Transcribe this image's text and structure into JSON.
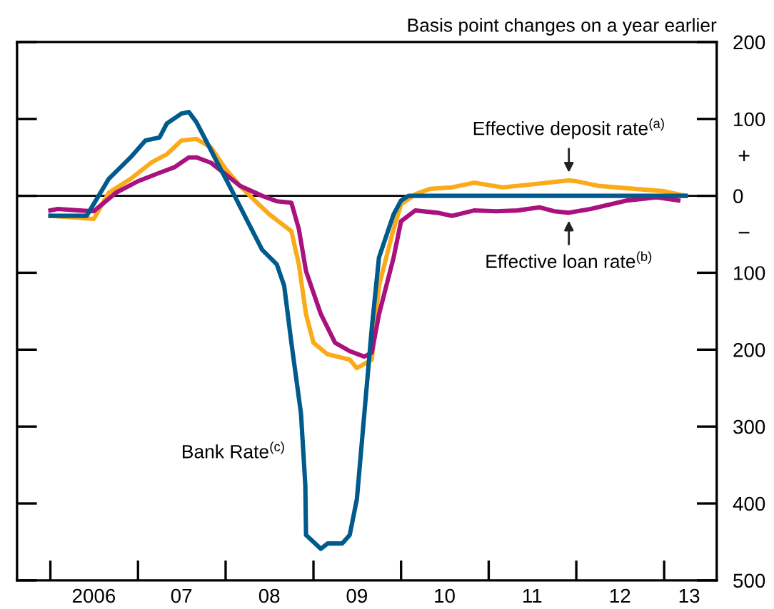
{
  "chart_data": {
    "type": "line",
    "ylabel": "Basis point changes on a year earlier",
    "xlim": [
      "2005-08-15",
      "2013-08-08"
    ],
    "ylim": [
      -500,
      200
    ],
    "xticks": [
      {
        "value": "2006-01-01",
        "label": null
      },
      {
        "value": "2007-01-01",
        "label": null
      },
      {
        "value": "2008-01-01",
        "label": null
      },
      {
        "value": "2009-01-01",
        "label": null
      },
      {
        "value": "2010-01-01",
        "label": null
      },
      {
        "value": "2011-01-01",
        "label": null
      },
      {
        "value": "2012-01-01",
        "label": null
      },
      {
        "value": "2013-01-01",
        "label": null
      },
      {
        "value": "2006-07-01",
        "label": "2006"
      },
      {
        "value": "2007-07-01",
        "label": "07"
      },
      {
        "value": "2008-07-01",
        "label": "08"
      },
      {
        "value": "2009-07-01",
        "label": "09"
      },
      {
        "value": "2010-07-01",
        "label": "10"
      },
      {
        "value": "2011-07-01",
        "label": "11"
      },
      {
        "value": "2012-07-01",
        "label": "12"
      },
      {
        "value": "2013-04-15",
        "label": "13"
      }
    ],
    "yticks": [
      200,
      100,
      0,
      {
        "value": -100,
        "label": "100"
      },
      {
        "value": -200,
        "label": "200"
      },
      {
        "value": -300,
        "label": "300"
      },
      {
        "value": -400,
        "label": "400"
      },
      {
        "value": -500,
        "label": "500"
      }
    ],
    "grid": false,
    "legend": false,
    "line_style": "solid",
    "marker": "none",
    "ref_lines": [
      {
        "axis": "y",
        "value": 0,
        "label": null,
        "color": "#000000"
      }
    ],
    "series": [
      {
        "color": "#fbaa19",
        "x": [
          "2006-01",
          "2006-07",
          "2006-09",
          "2006-12",
          "2007-03",
          "2007-05",
          "2007-07",
          "2007-09",
          "2007-11",
          "2008-01",
          "2008-03",
          "2008-05",
          "2008-07",
          "2008-10",
          "2008-11",
          "2008-12",
          "2009-01",
          "2009-03",
          "2009-06",
          "2009-07",
          "2009-09",
          "2009-10",
          "2009-12",
          "2010-01",
          "2010-03",
          "2010-05",
          "2010-08",
          "2010-11",
          "2011-03",
          "2011-07",
          "2011-12",
          "2012-01",
          "2012-04",
          "2012-09",
          "2013-01",
          "2013-04"
        ],
        "values": [
          -26,
          -30,
          4,
          22,
          44,
          54,
          72,
          74,
          63,
          35,
          13,
          -6,
          -24,
          -46,
          -89,
          -154,
          -191,
          -206,
          -213,
          -224,
          -213,
          -117,
          -43,
          -11,
          2,
          9,
          11,
          17,
          11,
          15,
          20,
          19,
          13,
          9,
          6,
          0
        ]
      },
      {
        "color": "#a8117e",
        "x": [
          "2006-01",
          "2006-02",
          "2006-05",
          "2006-07",
          "2006-10",
          "2007-01",
          "2007-04",
          "2007-06",
          "2007-08",
          "2007-09",
          "2007-11",
          "2008-01",
          "2008-03",
          "2008-06",
          "2008-08",
          "2008-10",
          "2008-11",
          "2008-12",
          "2009-02",
          "2009-04",
          "2009-06",
          "2009-08",
          "2009-09",
          "2009-10",
          "2009-12",
          "2010-01",
          "2010-03",
          "2010-06",
          "2010-08",
          "2010-11",
          "2011-02",
          "2011-05",
          "2011-08",
          "2011-10",
          "2011-12",
          "2012-03",
          "2012-08",
          "2012-12",
          "2013-03"
        ],
        "values": [
          -19,
          -17,
          -19,
          -20,
          4,
          19,
          30,
          37,
          50,
          50,
          43,
          28,
          13,
          0,
          -7,
          -9,
          -43,
          -98,
          -154,
          -191,
          -202,
          -209,
          -204,
          -154,
          -80,
          -33,
          -19,
          -22,
          -26,
          -19,
          -20,
          -19,
          -15,
          -20,
          -22,
          -17,
          -6,
          -2,
          -6
        ]
      },
      {
        "color": "#005a8c",
        "x": [
          "2006-01",
          "2006-06",
          "2006-09",
          "2006-12",
          "2007-02",
          "2007-04",
          "2007-05",
          "2007-07",
          "2007-08",
          "2007-09",
          "2007-10",
          "2007-12",
          "2008-02",
          "2008-04",
          "2008-06",
          "2008-08",
          "2008-09",
          "2008-10",
          "2008-11-10",
          "2008-11-28",
          "2008-12",
          "2009-02",
          "2009-03",
          "2009-05",
          "2009-06",
          "2009-07",
          "2009-08",
          "2009-09",
          "2009-10",
          "2009-12",
          "2010-01",
          "2010-02",
          "2013-04"
        ],
        "values": [
          -26,
          -26,
          22,
          50,
          72,
          76,
          94,
          107,
          109,
          96,
          78,
          41,
          4,
          -33,
          -70,
          -89,
          -117,
          -191,
          -283,
          -376,
          -441,
          -459,
          -452,
          -452,
          -441,
          -394,
          -283,
          -172,
          -80,
          -24,
          -6,
          0,
          0
        ]
      }
    ],
    "annotations": [
      {
        "text": "Effective deposit rate$^{(a)}$",
        "x": "2011-12",
        "y": 20
      },
      {
        "text": "Effective loan rate$^{(b)}$",
        "x": "2011-12",
        "y": -22
      },
      {
        "text": "Bank Rate$^{(c)}$",
        "x": "2008-11-28",
        "y": -376
      },
      "+",
      "−"
    ]
  }
}
